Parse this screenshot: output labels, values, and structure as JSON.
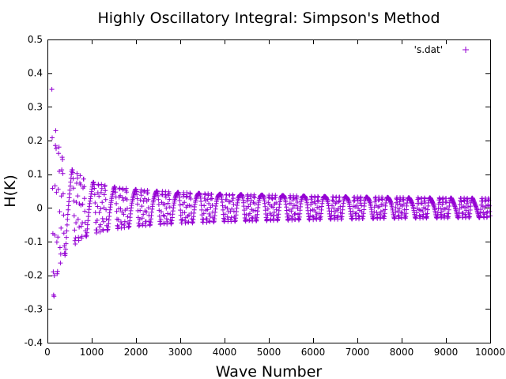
{
  "chart_data": {
    "type": "scatter",
    "title": "Highly Oscillatory Integral: Simpson's Method",
    "xlabel": "Wave Number",
    "ylabel": "H(K)",
    "xlim": [
      0,
      10000
    ],
    "ylim": [
      -0.4,
      0.5
    ],
    "xticks": [
      0,
      1000,
      2000,
      3000,
      4000,
      5000,
      6000,
      7000,
      8000,
      9000,
      10000
    ],
    "yticks": [
      -0.4,
      -0.3,
      -0.2,
      -0.1,
      0,
      0.1,
      0.2,
      0.3,
      0.4,
      0.5
    ],
    "xtick_labels": [
      "0",
      "1000",
      "2000",
      "3000",
      "4000",
      "5000",
      "6000",
      "7000",
      "8000",
      "9000",
      "10000"
    ],
    "ytick_labels": [
      "-0.4",
      "-0.3",
      "-0.2",
      "-0.1",
      "0",
      "0.1",
      "0.2",
      "0.3",
      "0.4",
      "0.5"
    ],
    "legend": {
      "label": "'s.dat'",
      "position": "top-right",
      "marker": "+"
    },
    "grid": false,
    "marker": "+",
    "color": "#9400d3",
    "series": [
      {
        "name": "'s.dat'",
        "description_of_trend": "oscillating values whose envelope decays from about 0.45 near K=100 to about 0.03 at K=10000",
        "x": [
          100,
          120,
          150,
          200,
          250,
          300,
          400,
          500,
          600,
          700,
          800,
          1000,
          1200,
          1500,
          2000,
          2500,
          3000,
          4000,
          5000,
          6000,
          7000,
          8000,
          9000,
          10000
        ],
        "envelope": [
          0.45,
          0.32,
          0.26,
          0.22,
          0.19,
          0.16,
          0.14,
          0.12,
          0.11,
          0.1,
          0.09,
          0.078,
          0.071,
          0.063,
          0.055,
          0.05,
          0.046,
          0.041,
          0.038,
          0.035,
          0.033,
          0.031,
          0.03,
          0.029
        ]
      }
    ]
  }
}
